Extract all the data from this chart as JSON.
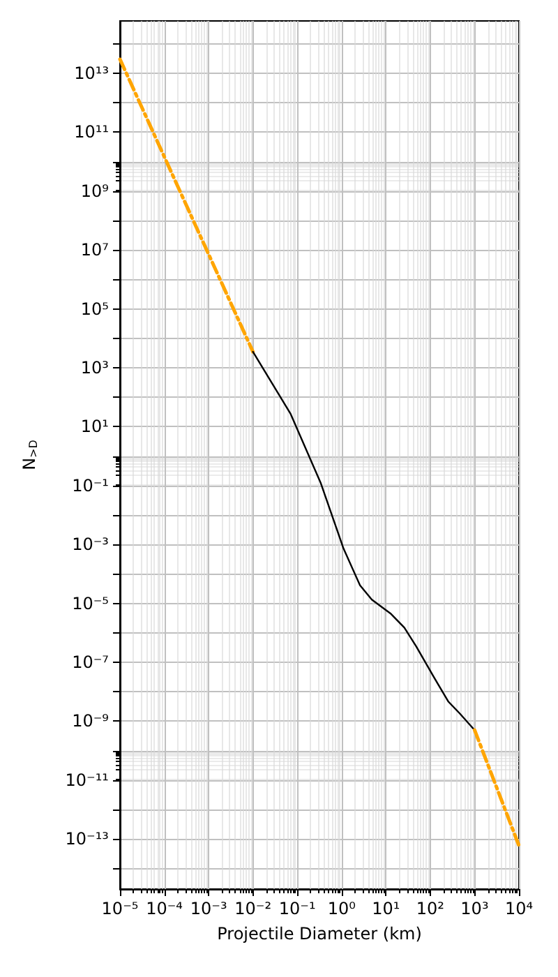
{
  "chart_data": {
    "type": "line",
    "xlabel": "Projectile Diameter (km)",
    "ylabel": "N$_{>D}$",
    "log": "xy",
    "grid": true,
    "marker": "none",
    "xlim": [
      1e-05,
      10000.0
    ],
    "ylim": [
      2e-15,
      600000000000000.0
    ],
    "xticks": [
      {
        "value": 1e-05,
        "label": "10⁻⁵"
      },
      {
        "value": 0.0001,
        "label": "10⁻⁴"
      },
      {
        "value": 0.001,
        "label": "10⁻³"
      },
      {
        "value": 0.01,
        "label": "10⁻²"
      },
      {
        "value": 0.1,
        "label": "10⁻¹"
      },
      {
        "value": 1,
        "label": "10⁰"
      },
      {
        "value": 10,
        "label": "10¹"
      },
      {
        "value": 100,
        "label": "10²"
      },
      {
        "value": 1000,
        "label": "10³"
      },
      {
        "value": 10000,
        "label": "10⁴"
      }
    ],
    "yticks": [
      {
        "value": 1e-14,
        "label": null
      },
      {
        "value": 1e-13,
        "label": "10⁻¹³"
      },
      {
        "value": 1e-12,
        "label": null
      },
      {
        "value": 1e-11,
        "label": "10⁻¹¹"
      },
      {
        "value": 1e-10,
        "label": null
      },
      {
        "value": 1e-09,
        "label": "10⁻⁹"
      },
      {
        "value": 1e-08,
        "label": null
      },
      {
        "value": 1e-07,
        "label": "10⁻⁷"
      },
      {
        "value": 1e-06,
        "label": null
      },
      {
        "value": 1e-05,
        "label": "10⁻⁵"
      },
      {
        "value": 0.0001,
        "label": null
      },
      {
        "value": 0.001,
        "label": "10⁻³"
      },
      {
        "value": 0.01,
        "label": null
      },
      {
        "value": 0.1,
        "label": "10⁻¹"
      },
      {
        "value": 1,
        "label": null
      },
      {
        "value": 10,
        "label": "10¹"
      },
      {
        "value": 100,
        "label": null
      },
      {
        "value": 1000,
        "label": "10³"
      },
      {
        "value": 10000.0,
        "label": null
      },
      {
        "value": 100000.0,
        "label": "10⁵"
      },
      {
        "value": 1000000.0,
        "label": null
      },
      {
        "value": 10000000.0,
        "label": "10⁷"
      },
      {
        "value": 100000000.0,
        "label": null
      },
      {
        "value": 1000000000.0,
        "label": "10⁹"
      },
      {
        "value": 10000000000.0,
        "label": null
      },
      {
        "value": 100000000000.0,
        "label": "10¹¹"
      },
      {
        "value": 1000000000000.0,
        "label": null
      },
      {
        "value": 10000000000000.0,
        "label": "10¹³"
      },
      {
        "value": 100000000000000.0,
        "label": null
      }
    ],
    "series": [
      {
        "color": "#ffa500",
        "line_style": "dashed",
        "x": [
          1e-05,
          0.01
        ],
        "values": [
          30000000000000.0,
          3500
        ]
      },
      {
        "color": "#000000",
        "line_style": "solid",
        "x": [
          0.01,
          0.07,
          0.34,
          1.1,
          2.6,
          4.8,
          12.6,
          26,
          48,
          126,
          257,
          468,
          1000
        ],
        "values": [
          3500,
          28,
          0.12,
          0.00074,
          4.1e-05,
          1.35e-05,
          4.6e-06,
          1.5e-06,
          3.5e-07,
          2.8e-08,
          4.6e-09,
          1.8e-09,
          5e-10
        ]
      },
      {
        "color": "#ffa500",
        "line_style": "dashed",
        "x": [
          1000,
          10000
        ],
        "values": [
          5e-10,
          6e-14
        ]
      }
    ]
  }
}
